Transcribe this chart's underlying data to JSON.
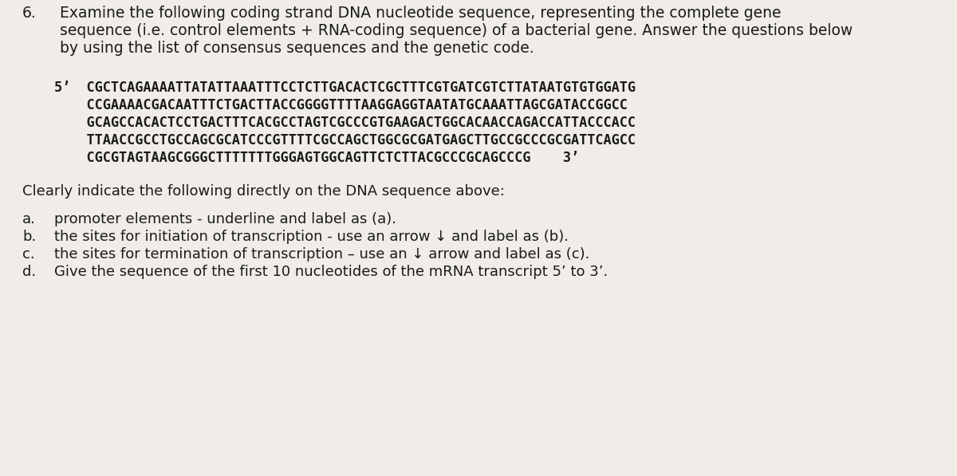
{
  "bg_color": "#f0ede8",
  "text_color": "#1a1a1a",
  "question_number": "6.",
  "q_line1": "Examine the following coding strand DNA nucleotide sequence, representing the complete gene",
  "q_line2": "sequence (i.e. control elements + RNA-coding sequence) of a bacterial gene. Answer the questions below",
  "q_line3": "by using the list of consensus sequences and the genetic code.",
  "dna_line1": "5’  CGCTCAGAAAATTATATTAAATTTCCTCTTGACACTCGCTTTCGTGATCGTCTTATAATGTGTGGATG",
  "dna_line2": "    CCGAAAACGACAATTTCTGACTTACCGGGGTTTTAAGGAGGTAATATGCAAATTAGCGATACCGGCC",
  "dna_line3": "    GCAGCCACACTCCTGACTTTCACGCCTAGTCGCCCGTGAAGACTGGCACAACCAGACCATTACCCACC",
  "dna_line4": "    TTAACCGCCTGCCAGCGCATCCCGTTTTCGCCAGCTGGCGCGATGAGCTTGCCGCCCGCGATTCAGCC",
  "dna_line5": "    CGCGTAGTAAGCGGGCTTTTTTTGGGAGTGGCAGTTCTCTTACGCCCGCAGCCCG    3’",
  "clearly_text": "Clearly indicate the following directly on the DNA sequence above:",
  "item_a_label": "a.",
  "item_a_text": "promoter elements - underline and label as (a).",
  "item_b_label": "b.",
  "item_b_text": "the sites for initiation of transcription - use an arrow ↓ and label as (b).",
  "item_c_label": "c.",
  "item_c_text": "the sites for termination of transcription – use an ↓ arrow and label as (c).",
  "item_d_label": "d.",
  "item_d_text": "Give the sequence of the first 10 nucleotides of the mRNA transcript 5’ to 3’.",
  "heading_fontsize": 13.5,
  "mono_fontsize": 12.2,
  "body_fontsize": 13.0
}
